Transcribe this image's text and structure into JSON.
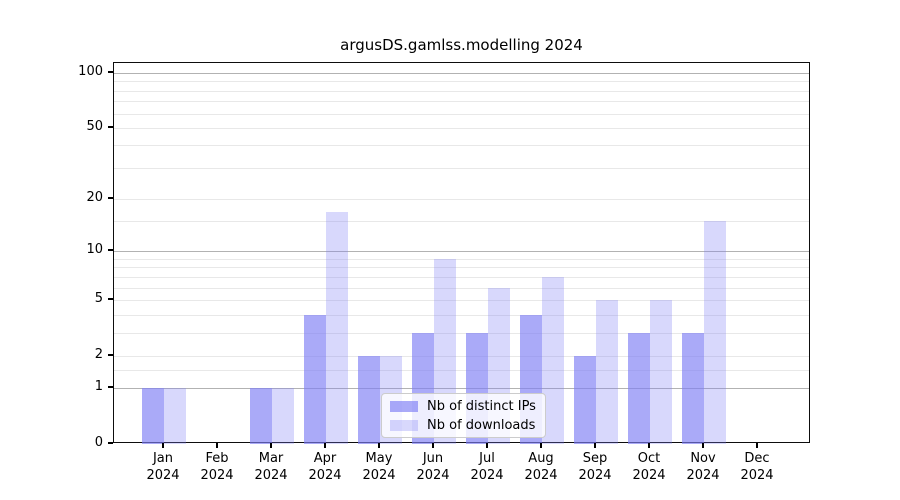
{
  "chart_data": {
    "type": "bar",
    "title": "argusDS.gamlss.modelling 2024",
    "categories": [
      {
        "month": "Jan",
        "year": "2024"
      },
      {
        "month": "Feb",
        "year": "2024"
      },
      {
        "month": "Mar",
        "year": "2024"
      },
      {
        "month": "Apr",
        "year": "2024"
      },
      {
        "month": "May",
        "year": "2024"
      },
      {
        "month": "Jun",
        "year": "2024"
      },
      {
        "month": "Jul",
        "year": "2024"
      },
      {
        "month": "Aug",
        "year": "2024"
      },
      {
        "month": "Sep",
        "year": "2024"
      },
      {
        "month": "Oct",
        "year": "2024"
      },
      {
        "month": "Nov",
        "year": "2024"
      },
      {
        "month": "Dec",
        "year": "2024"
      }
    ],
    "series": [
      {
        "name": "Nb of distinct IPs",
        "color": "rgba(126,126,245,0.66)",
        "values": [
          1,
          0,
          1,
          4,
          2,
          3,
          3,
          4,
          2,
          3,
          3,
          0
        ]
      },
      {
        "name": "Nb of downloads",
        "color": "rgba(126,126,245,0.30)",
        "values": [
          1,
          0,
          1,
          17,
          2,
          9,
          6,
          7,
          5,
          5,
          15,
          0
        ]
      }
    ],
    "yscale": "log1p",
    "ylim": [
      0,
      113
    ],
    "ytick_labels": [
      0,
      1,
      2,
      5,
      10,
      20,
      50,
      100
    ],
    "grid_decade_lines": [
      1,
      10,
      100
    ],
    "grid_minor_lines": [
      1.5,
      2,
      3,
      4,
      5,
      6,
      7,
      8,
      9,
      15,
      20,
      30,
      40,
      50,
      60,
      70,
      80,
      90
    ],
    "grid": true,
    "legend_position": "lower-center",
    "colors": {
      "grid_decade": "#b2b2b2",
      "grid_minor": "#e8e8e8",
      "spine": "#0d0d0d",
      "text": "#000000"
    }
  }
}
